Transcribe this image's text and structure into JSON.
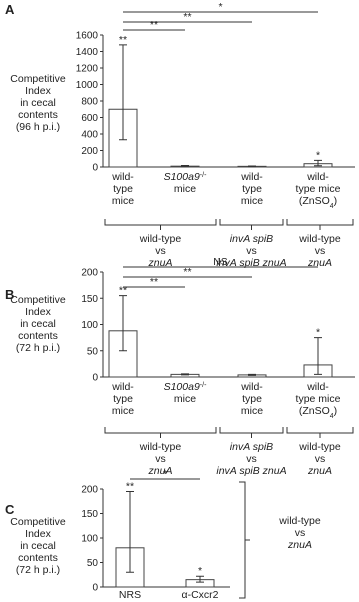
{
  "chart_data": [
    {
      "type": "bar",
      "panel": "A",
      "ylabel": [
        "Competitive",
        "Index",
        "in cecal",
        "contents",
        "(96 h p.i.)"
      ],
      "categories": [
        [
          "wild-",
          "type",
          "mice"
        ],
        [
          [
            {
              "t": "S100a9",
              "s": "i"
            },
            {
              "t": "-/-",
              "s": "sup"
            }
          ],
          "mice"
        ],
        [
          "wild-",
          "type",
          "mice"
        ],
        [
          "wild-",
          "type mice",
          [
            {
              "t": "(ZnSO"
            },
            {
              "t": "4",
              "s": "sub"
            },
            {
              "t": ")"
            }
          ]
        ]
      ],
      "values": [
        700,
        10,
        8,
        40
      ],
      "error_low": [
        370,
        5,
        4,
        25
      ],
      "error_high": [
        780,
        8,
        4,
        40
      ],
      "significance": [
        "**",
        null,
        null,
        "*"
      ],
      "comparisons": [
        "**",
        "**",
        "*"
      ],
      "groups": [
        [
          "wild-type",
          "vs",
          [
            {
              "t": "znuA",
              "s": "i"
            }
          ]
        ],
        [
          [
            {
              "t": "invA spiB",
              "s": "i"
            }
          ],
          "vs",
          [
            {
              "t": "invA spiB znuA",
              "s": "i"
            }
          ]
        ],
        [
          "wild-type",
          "vs",
          [
            {
              "t": "znuA",
              "s": "i"
            }
          ]
        ]
      ],
      "ylim": [
        0,
        1600
      ],
      "yticks": [
        0,
        200,
        400,
        600,
        800,
        1000,
        1200,
        1400,
        1600
      ],
      "color": "#ffffff"
    },
    {
      "type": "bar",
      "panel": "B",
      "ylabel": [
        "Competitive",
        "Index",
        "in cecal",
        "contents",
        "(72 h p.i.)"
      ],
      "categories": [
        [
          "wild-",
          "type",
          "mice"
        ],
        [
          [
            {
              "t": "S100a9",
              "s": "i"
            },
            {
              "t": "-/-",
              "s": "sup"
            }
          ],
          "mice"
        ],
        [
          "wild-",
          "type",
          "mice"
        ],
        [
          "wild-",
          "type mice",
          [
            {
              "t": "(ZnSO"
            },
            {
              "t": "4",
              "s": "sub"
            },
            {
              "t": ")"
            }
          ]
        ]
      ],
      "values": [
        88,
        5,
        4,
        23
      ],
      "error_low": [
        38,
        1,
        1,
        18
      ],
      "error_high": [
        67,
        1,
        1,
        52
      ],
      "significance": [
        "**",
        null,
        null,
        "*"
      ],
      "comparisons": [
        "**",
        "**",
        "NS"
      ],
      "groups": [
        [
          "wild-type",
          "vs",
          [
            {
              "t": "znuA",
              "s": "i"
            }
          ]
        ],
        [
          [
            {
              "t": "invA spiB",
              "s": "i"
            }
          ],
          "vs",
          [
            {
              "t": "invA spiB znuA",
              "s": "i"
            }
          ]
        ],
        [
          "wild-type",
          "vs",
          [
            {
              "t": "znuA",
              "s": "i"
            }
          ]
        ]
      ],
      "ylim": [
        0,
        200
      ],
      "yticks": [
        0,
        50,
        100,
        150,
        200
      ],
      "color": "#ffffff"
    },
    {
      "type": "bar",
      "panel": "C",
      "ylabel": [
        "Competitive",
        "Index",
        "in cecal",
        "contents",
        "(72 h p.i.)"
      ],
      "categories": [
        [
          "NRS"
        ],
        [
          "α-Cxcr2"
        ]
      ],
      "values": [
        80,
        15
      ],
      "error_low": [
        50,
        5
      ],
      "error_high": [
        115,
        7
      ],
      "significance": [
        "**",
        "*"
      ],
      "comparisons": [
        "*"
      ],
      "groups": [
        [
          "wild-type",
          "vs",
          [
            {
              "t": "znuA",
              "s": "i"
            }
          ]
        ]
      ],
      "ylim": [
        0,
        200
      ],
      "yticks": [
        0,
        50,
        100,
        150,
        200
      ],
      "color": "#ffffff"
    }
  ]
}
